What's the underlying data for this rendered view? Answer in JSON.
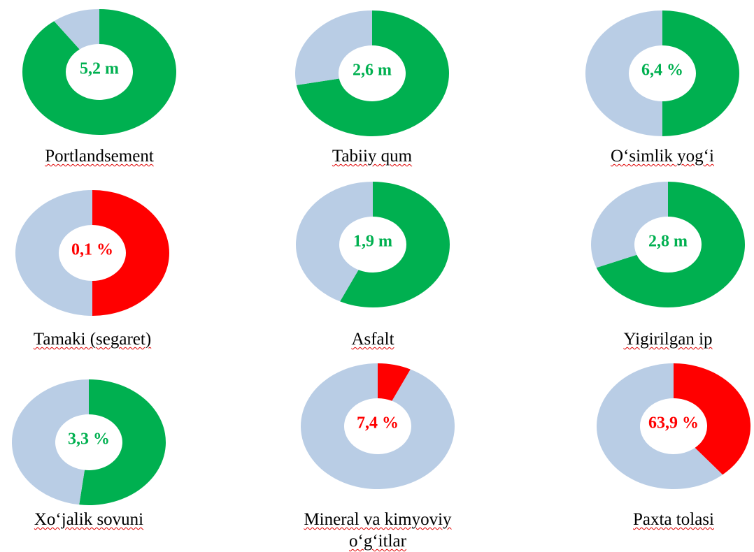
{
  "chart_data": [
    {
      "type": "donut",
      "title": "Portlandsement",
      "center_label": "5,2 m",
      "values": [
        90,
        10
      ],
      "colors": [
        "#00b050",
        "#b9cde5"
      ]
    },
    {
      "type": "donut",
      "title": "Tabiiy qum",
      "center_label": "2,6 m",
      "values": [
        72,
        28
      ],
      "colors": [
        "#00b050",
        "#b9cde5"
      ]
    },
    {
      "type": "donut",
      "title": "O‘simlik yog‘i",
      "center_label": "6,4 %",
      "values": [
        50,
        50
      ],
      "colors": [
        "#00b050",
        "#b9cde5"
      ]
    },
    {
      "type": "donut",
      "title": "Tamaki (segaret)",
      "center_label": "0,1 %",
      "values": [
        50,
        50
      ],
      "colors": [
        "#ff0000",
        "#b9cde5"
      ]
    },
    {
      "type": "donut",
      "title": "Asfalt",
      "center_label": "1,9 m",
      "values": [
        57,
        43
      ],
      "colors": [
        "#00b050",
        "#b9cde5"
      ]
    },
    {
      "type": "donut",
      "title": "Yigirilgan ip",
      "center_label": "2,8 m",
      "values": [
        69,
        31
      ],
      "colors": [
        "#00b050",
        "#b9cde5"
      ]
    },
    {
      "type": "donut",
      "title": "Xo‘jalik sovuni",
      "center_label": "3,3 %",
      "values": [
        52,
        48
      ],
      "colors": [
        "#00b050",
        "#b9cde5"
      ]
    },
    {
      "type": "donut",
      "title": "Mineral va kimyoviy o‘g‘itlar",
      "center_label": "7,4 %",
      "values": [
        7,
        93
      ],
      "colors": [
        "#ff0000",
        "#b9cde5"
      ]
    },
    {
      "type": "donut",
      "title": "Paxta tolasi",
      "center_label": "63,9 %",
      "values": [
        39,
        61
      ],
      "colors": [
        "#ff0000",
        "#b9cde5"
      ]
    }
  ]
}
